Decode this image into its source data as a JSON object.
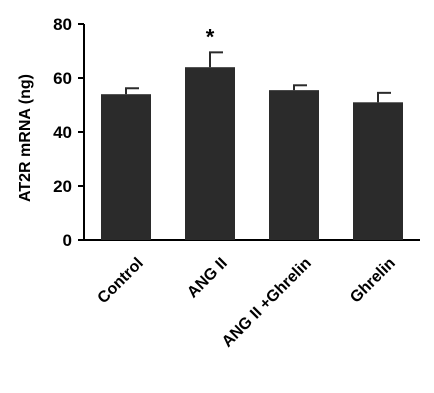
{
  "chart_data": {
    "type": "bar",
    "categories": [
      "Control",
      "ANG II",
      "ANG II +Ghrelin",
      "Ghrelin"
    ],
    "values": [
      54,
      64,
      55.5,
      51
    ],
    "errors": [
      2.2,
      5.5,
      1.8,
      3.5
    ],
    "annotations": [
      "",
      "*",
      "",
      ""
    ],
    "title": "",
    "xlabel": "",
    "ylabel": "AT2R mRNA (ng)",
    "ylim": [
      0,
      80
    ],
    "yticks": [
      0,
      20,
      40,
      60,
      80
    ],
    "grid": false,
    "legend": "none",
    "bar_color": "#2b2b2b",
    "axis_color": "#000000"
  }
}
